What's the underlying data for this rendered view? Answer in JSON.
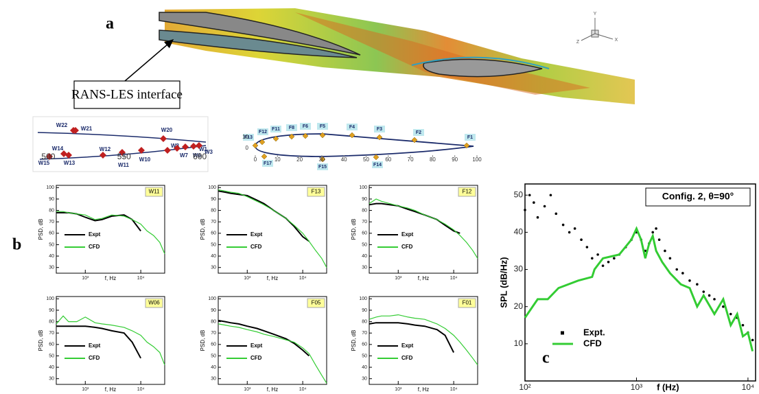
{
  "panel_labels": [
    "a",
    "b",
    "c"
  ],
  "annotation": "RANS-LES interface",
  "axis_triad": [
    "Y",
    "Z",
    "X"
  ],
  "slat_diagram": {
    "labels": [
      "W22",
      "W21",
      "W20",
      "W14",
      "W12",
      "W8",
      "W1",
      "W15",
      "W13",
      "W11",
      "W10",
      "W7",
      "W6",
      "W3"
    ],
    "xlim": [
      493,
      604
    ],
    "xticks": [
      500,
      550,
      600
    ]
  },
  "flap_diagram": {
    "labels": [
      "F13",
      "F12",
      "F11",
      "F8",
      "F6",
      "F5",
      "F4",
      "F3",
      "F2",
      "F1",
      "F17",
      "F15",
      "F14"
    ],
    "xlim": [
      0,
      100
    ],
    "xticks": [
      0,
      10,
      20,
      30,
      40,
      50,
      60,
      70,
      80,
      90,
      100
    ],
    "ylim": [
      0,
      10
    ],
    "yticks": [
      10,
      0
    ]
  },
  "chart_data": [
    {
      "type": "line",
      "title": "W11",
      "xlabel": "f, Hz",
      "ylabel": "PSD, dB",
      "xscale": "log",
      "xlim": [
        300,
        27000
      ],
      "xticks": [
        {
          "value": 1000,
          "label": "10³"
        },
        {
          "value": 10000,
          "label": "10⁴"
        }
      ],
      "ylim": [
        25,
        102
      ],
      "yticks": [
        30,
        40,
        50,
        60,
        70,
        80,
        90,
        100
      ],
      "legend": "lower left",
      "x": [
        300,
        400,
        500,
        700,
        1000,
        1500,
        2000,
        3000,
        5000,
        7000,
        10000,
        13000,
        17000,
        22000,
        27000
      ],
      "series": [
        {
          "name": "Expt",
          "color": "#000000",
          "values": [
            78,
            78,
            78,
            77,
            74,
            71,
            72,
            75,
            76,
            72,
            62,
            null,
            null,
            null,
            null
          ]
        },
        {
          "name": "CFD",
          "color": "#33cc33",
          "values": [
            79,
            79,
            78,
            77,
            76,
            72,
            73,
            76,
            75,
            72,
            68,
            62,
            58,
            52,
            42
          ]
        }
      ]
    },
    {
      "type": "line",
      "title": "F13",
      "xlabel": "f, Hz",
      "ylabel": "PSD, dB",
      "xscale": "log",
      "xlim": [
        300,
        27000
      ],
      "xticks": [
        {
          "value": 1000,
          "label": "10³"
        },
        {
          "value": 10000,
          "label": "10⁴"
        }
      ],
      "ylim": [
        25,
        102
      ],
      "yticks": [
        30,
        40,
        50,
        60,
        70,
        80,
        90,
        100
      ],
      "legend": "lower left",
      "x": [
        300,
        400,
        500,
        700,
        1000,
        1500,
        2000,
        3000,
        5000,
        7000,
        10000,
        13000,
        17000,
        22000,
        27000
      ],
      "series": [
        {
          "name": "Expt",
          "color": "#000000",
          "values": [
            97,
            96,
            95,
            94,
            93,
            89,
            86,
            80,
            73,
            66,
            57,
            53,
            null,
            null,
            null
          ]
        },
        {
          "name": "CFD",
          "color": "#33cc33",
          "values": [
            98,
            97,
            96,
            95,
            92,
            88,
            85,
            80,
            73,
            67,
            60,
            53,
            45,
            38,
            30
          ]
        }
      ]
    },
    {
      "type": "line",
      "title": "F12",
      "xlabel": "f, Hz",
      "ylabel": "PSD, dB",
      "xscale": "log",
      "xlim": [
        300,
        27000
      ],
      "xticks": [
        {
          "value": 1000,
          "label": "10³"
        },
        {
          "value": 10000,
          "label": "10⁴"
        }
      ],
      "ylim": [
        25,
        102
      ],
      "yticks": [
        30,
        40,
        50,
        60,
        70,
        80,
        90,
        100
      ],
      "legend": "lower left",
      "x": [
        300,
        400,
        500,
        700,
        1000,
        1500,
        2000,
        3000,
        5000,
        7000,
        10000,
        13000,
        17000,
        22000,
        27000
      ],
      "series": [
        {
          "name": "Expt",
          "color": "#000000",
          "values": [
            85,
            86,
            86,
            85,
            84,
            81,
            79,
            76,
            72,
            67,
            62,
            60,
            null,
            null,
            null
          ]
        },
        {
          "name": "CFD",
          "color": "#33cc33",
          "values": [
            86,
            90,
            88,
            86,
            84,
            82,
            80,
            76,
            72,
            68,
            63,
            58,
            52,
            45,
            38
          ]
        }
      ]
    },
    {
      "type": "line",
      "title": "W06",
      "xlabel": "f, Hz",
      "ylabel": "PSD, dB",
      "xscale": "log",
      "xlim": [
        300,
        27000
      ],
      "xticks": [
        {
          "value": 1000,
          "label": "10³"
        },
        {
          "value": 10000,
          "label": "10⁴"
        }
      ],
      "ylim": [
        25,
        102
      ],
      "yticks": [
        30,
        40,
        50,
        60,
        70,
        80,
        90,
        100
      ],
      "legend": "lower left",
      "x": [
        300,
        400,
        500,
        700,
        1000,
        1500,
        2000,
        3000,
        5000,
        7000,
        10000,
        13000,
        17000,
        22000,
        27000
      ],
      "series": [
        {
          "name": "Expt",
          "color": "#000000",
          "values": [
            76,
            76,
            76,
            76,
            76,
            75,
            74,
            72,
            70,
            62,
            48,
            null,
            null,
            null,
            null
          ]
        },
        {
          "name": "CFD",
          "color": "#33cc33",
          "values": [
            78,
            85,
            80,
            80,
            84,
            79,
            78,
            77,
            75,
            72,
            68,
            62,
            58,
            53,
            42
          ]
        }
      ]
    },
    {
      "type": "line",
      "title": "F05",
      "xlabel": "f, Hz",
      "ylabel": "PSD, dB",
      "xscale": "log",
      "xlim": [
        300,
        27000
      ],
      "xticks": [
        {
          "value": 1000,
          "label": "10³"
        },
        {
          "value": 10000,
          "label": "10⁴"
        }
      ],
      "ylim": [
        25,
        102
      ],
      "yticks": [
        30,
        40,
        50,
        60,
        70,
        80,
        90,
        100
      ],
      "legend": "lower left",
      "x": [
        300,
        400,
        500,
        700,
        1000,
        1500,
        2000,
        3000,
        5000,
        7000,
        10000,
        13000,
        17000,
        22000,
        27000
      ],
      "series": [
        {
          "name": "Expt",
          "color": "#000000",
          "values": [
            81,
            80,
            79,
            78,
            76,
            74,
            72,
            69,
            65,
            61,
            55,
            50,
            null,
            null,
            null
          ]
        },
        {
          "name": "CFD",
          "color": "#33cc33",
          "values": [
            78,
            77,
            76,
            75,
            73,
            71,
            69,
            67,
            64,
            62,
            57,
            52,
            42,
            33,
            26
          ]
        }
      ]
    },
    {
      "type": "line",
      "title": "F01",
      "xlabel": "f, Hz",
      "ylabel": "PSD, dB",
      "xscale": "log",
      "xlim": [
        300,
        27000
      ],
      "xticks": [
        {
          "value": 1000,
          "label": "10³"
        },
        {
          "value": 10000,
          "label": "10⁴"
        }
      ],
      "ylim": [
        25,
        102
      ],
      "yticks": [
        30,
        40,
        50,
        60,
        70,
        80,
        90,
        100
      ],
      "legend": "lower left",
      "x": [
        300,
        400,
        500,
        700,
        1000,
        1500,
        2000,
        3000,
        5000,
        7000,
        10000,
        13000,
        17000,
        22000,
        27000
      ],
      "series": [
        {
          "name": "Expt",
          "color": "#000000",
          "values": [
            78,
            79,
            79,
            79,
            79,
            78,
            77,
            76,
            73,
            68,
            53,
            null,
            null,
            null,
            null
          ]
        },
        {
          "name": "CFD",
          "color": "#33cc33",
          "values": [
            82,
            84,
            85,
            85,
            86,
            84,
            83,
            82,
            78,
            74,
            68,
            62,
            55,
            48,
            42
          ]
        }
      ]
    },
    {
      "type": "line",
      "title": "Config. 2, θ=90°",
      "xlabel": "f (Hz)",
      "ylabel": "SPL (dB/Hz)",
      "xscale": "log",
      "xlim": [
        100,
        11700
      ],
      "xticks": [
        {
          "value": 100,
          "label": "10²"
        },
        {
          "value": 1000,
          "label": "10³"
        },
        {
          "value": 10000,
          "label": "10⁴"
        }
      ],
      "ylim": [
        0,
        53
      ],
      "yticks": [
        10,
        20,
        30,
        40,
        50
      ],
      "legend": "lower left",
      "series": [
        {
          "name": "Expt.",
          "color": "#000000",
          "mode": "markers",
          "x": [
            100,
            110,
            120,
            130,
            150,
            170,
            190,
            220,
            250,
            280,
            320,
            360,
            400,
            450,
            500,
            560,
            630,
            700,
            800,
            900,
            1000,
            1100,
            1200,
            1300,
            1400,
            1500,
            1600,
            1800,
            2000,
            2300,
            2600,
            3000,
            3500,
            4000,
            4500,
            5000,
            6000,
            7000,
            8000,
            9000,
            10000,
            11000
          ],
          "values": [
            46,
            50,
            48,
            44,
            47,
            50,
            45,
            42,
            40,
            41,
            38,
            36,
            33,
            34,
            31,
            32,
            33,
            34,
            36,
            38,
            40,
            38,
            35,
            37,
            40,
            41,
            38,
            35,
            33,
            30,
            29,
            27,
            26,
            24,
            23,
            22,
            20,
            18,
            17,
            15,
            13,
            11
          ]
        },
        {
          "name": "CFD",
          "color": "#33cc33",
          "mode": "lines",
          "x": [
            100,
            130,
            160,
            200,
            300,
            400,
            420,
            500,
            700,
            900,
            1000,
            1100,
            1200,
            1300,
            1400,
            1500,
            1700,
            2000,
            2500,
            3000,
            3500,
            4000,
            5000,
            6000,
            7000,
            8000,
            9000,
            10000,
            11000
          ],
          "values": [
            17,
            22,
            22,
            25,
            27,
            28,
            30,
            33,
            34,
            38,
            41,
            38,
            33,
            37,
            39,
            35,
            32,
            29,
            26,
            25,
            20,
            23,
            18,
            22,
            15,
            18,
            12,
            13,
            8
          ]
        }
      ]
    }
  ]
}
